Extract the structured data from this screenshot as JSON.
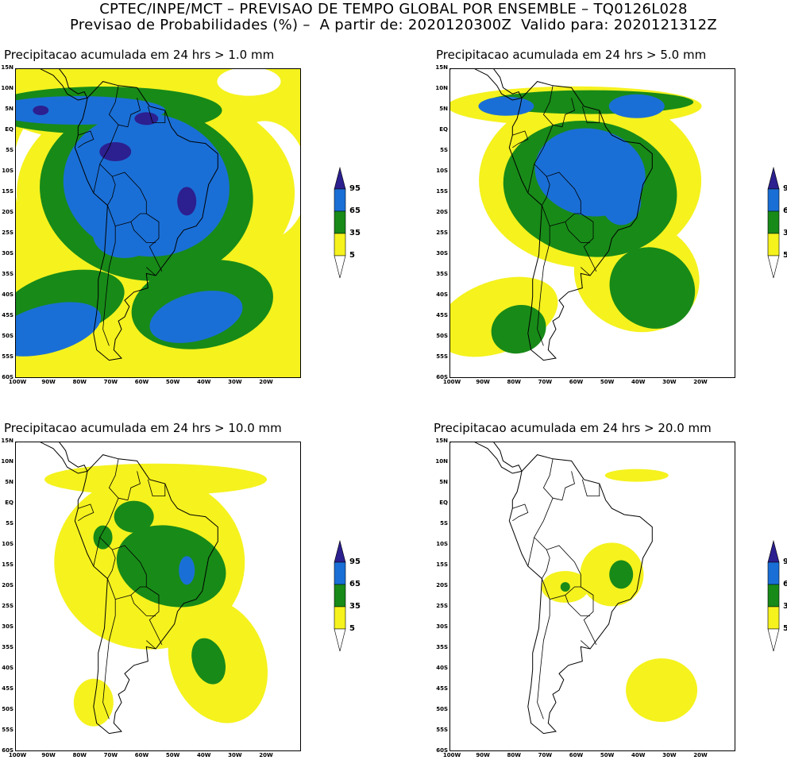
{
  "header": {
    "line1": "CPTEC/INPE/MCT – PREVISAO DE TEMPO GLOBAL POR ENSEMBLE – TQ0126L028",
    "line2": "Previsao de Probabilidades (%) –  A partir de: 2020120300Z  Valido para: 2020121312Z"
  },
  "lat_labels": [
    "15N",
    "10N",
    "5N",
    "EQ",
    "5S",
    "10S",
    "15S",
    "20S",
    "25S",
    "30S",
    "35S",
    "40S",
    "45S",
    "50S",
    "55S",
    "60S"
  ],
  "lon_labels": [
    "100W",
    "90W",
    "80W",
    "70W",
    "60W",
    "50W",
    "40W",
    "30W",
    "20W"
  ],
  "legend": {
    "levels": [
      "95",
      "65",
      "35",
      "5"
    ],
    "colors": {
      "c95": "#2c1f8f",
      "c65": "#1a6fd6",
      "c35": "#188a18",
      "c5": "#f5f21e",
      "low": "#ffffff"
    }
  },
  "panels": [
    {
      "title": "Precipitacao acumulada em 24 hrs > 1.0 mm",
      "threshold": "1.0"
    },
    {
      "title": "Precipitacao acumulada em 24 hrs > 5.0 mm",
      "threshold": "5.0"
    },
    {
      "title": "Precipitacao acumulada em 24 hrs > 10.0 mm",
      "threshold": "10.0"
    },
    {
      "title": "Precipitacao acumulada em 24 hrs > 20.0 mm",
      "threshold": "20.0"
    }
  ]
}
